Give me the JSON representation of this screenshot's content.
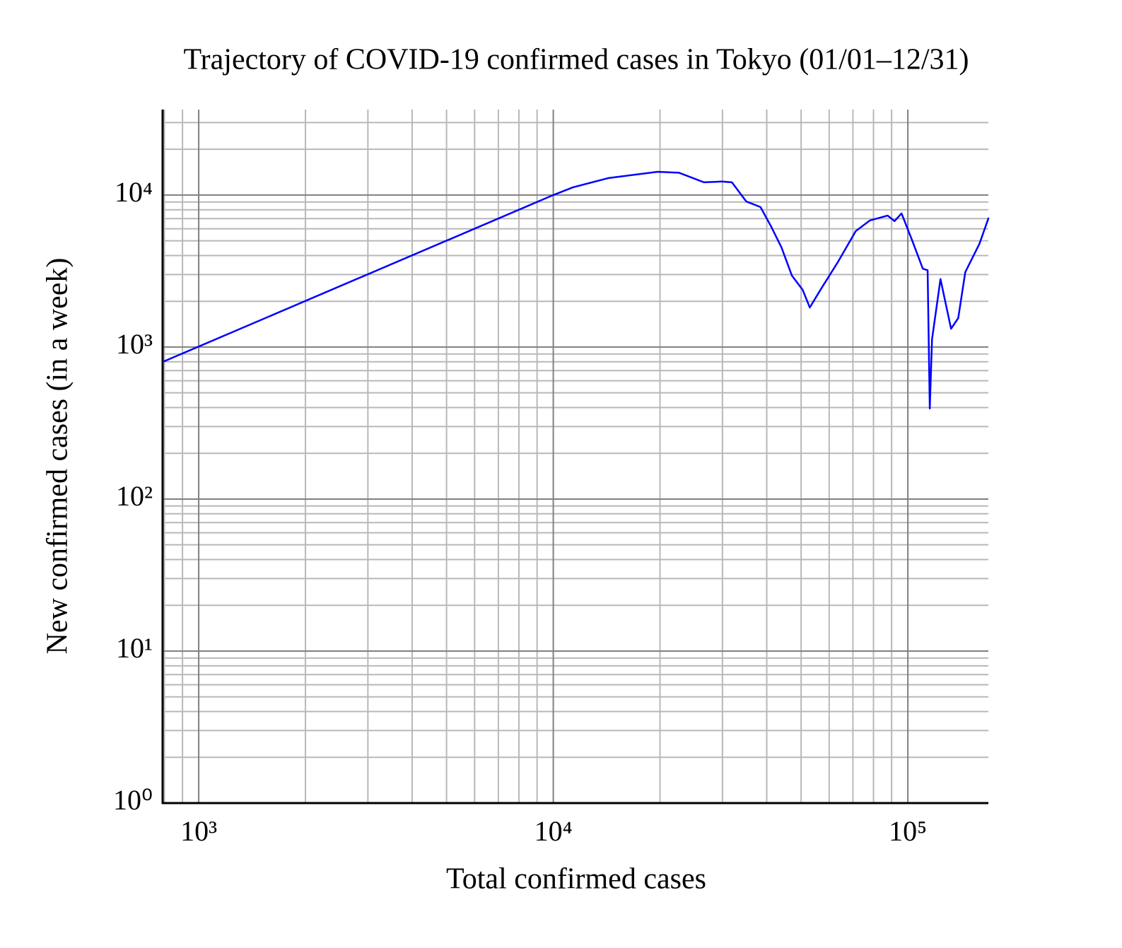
{
  "chart_data": {
    "type": "line",
    "title": "Trajectory of COVID-19 confirmed cases in Tokyo (01/01–12/31)",
    "x_label": "Total confirmed cases",
    "y_label": "New confirmed cases (in a week)",
    "x": [
      791,
      10000,
      11370,
      14300,
      19700,
      22650,
      26600,
      29850,
      31900,
      35000,
      38400,
      41100,
      44000,
      47100,
      50500,
      52900,
      56700,
      63600,
      71300,
      78200,
      87700,
      91700,
      96000,
      102800,
      110200,
      113700,
      115300,
      117000,
      123600,
      132400,
      138700,
      145200,
      159200,
      169000
    ],
    "values": [
      798,
      10000,
      11250,
      12930,
      14230,
      14010,
      12130,
      12270,
      12130,
      9080,
      8340,
      6240,
      4530,
      2950,
      2380,
      1820,
      2380,
      3650,
      5790,
      6810,
      7330,
      6740,
      7570,
      5040,
      3280,
      3200,
      394,
      1125,
      2800,
      1320,
      1550,
      3110,
      4780,
      7100
    ],
    "color": "#0000ff",
    "xscale": "log",
    "yscale": "log",
    "xlim": [
      791,
      168700
    ],
    "ylim": [
      1,
      36500
    ],
    "xticks": [
      {
        "value": 1000,
        "label": "10³"
      },
      {
        "value": 10000,
        "label": "10⁴"
      },
      {
        "value": 100000,
        "label": "10⁵"
      }
    ],
    "yticks": [
      {
        "value": 1,
        "label": "10⁰"
      },
      {
        "value": 10,
        "label": "10¹"
      },
      {
        "value": 100,
        "label": "10²"
      },
      {
        "value": 1000,
        "label": "10³"
      },
      {
        "value": 10000,
        "label": "10⁴"
      }
    ],
    "grid": true,
    "minor_grid": true
  }
}
